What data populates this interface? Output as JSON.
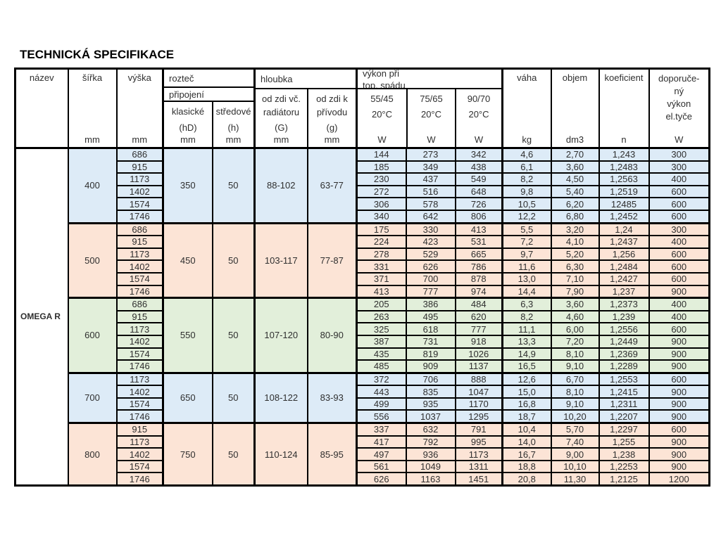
{
  "title": "TECHNICKÁ SPECIFIKACE",
  "product": "OMEGA R",
  "colors": {
    "blue": "#DDEBF7",
    "orange": "#FCE4D6",
    "green": "#E2EFDA",
    "border": "#000000"
  },
  "header": {
    "nazev": "název",
    "sirka": "šířka",
    "vyska": "výška",
    "roztec": "rozteč",
    "pripojeni": "připojení",
    "klasicke_l1": "klasické",
    "klasicke_l2": "(hD)",
    "stredove_l1": "středové",
    "stredove_l2": "(h)",
    "hloubka": "hloubka",
    "g_big_l1": "od zdi  vč.",
    "g_big_l2": "radiátoru",
    "g_big_l3": "(G)",
    "g_small_l1": "od zdi  k",
    "g_small_l2": "přívodu",
    "g_small_l3": "(g)",
    "vykon_l1": "výkon při",
    "vykon_l2": "top. spádu",
    "p55": "55/45",
    "p75": "75/65",
    "p90": "90/70",
    "deg": "20°C",
    "vaha": "váha",
    "objem": "objem",
    "koeficient": "koeficient",
    "dop_l1": "doporuče-",
    "dop_l2": "ný",
    "dop_l3": "výkon",
    "dop_l4": "el.tyče",
    "unit_mm": "mm",
    "unit_w": "W",
    "unit_kg": "kg",
    "unit_dm3": "dm3",
    "unit_n": "n"
  },
  "groups": [
    {
      "sirka": "400",
      "color": "blue",
      "klasicke": "350",
      "stredove": "50",
      "hloubka_G": "88-102",
      "hloubka_g": "63-77",
      "rows": [
        [
          "686",
          "144",
          "273",
          "342",
          "4,6",
          "2,70",
          "1,243",
          "300"
        ],
        [
          "915",
          "185",
          "349",
          "438",
          "6,1",
          "3,60",
          "1,2483",
          "300"
        ],
        [
          "1173",
          "230",
          "437",
          "549",
          "8,2",
          "4,50",
          "1,2563",
          "400"
        ],
        [
          "1402",
          "272",
          "516",
          "648",
          "9,8",
          "5,40",
          "1,2519",
          "600"
        ],
        [
          "1574",
          "306",
          "578",
          "726",
          "10,5",
          "6,20",
          "12485",
          "600"
        ],
        [
          "1746",
          "340",
          "642",
          "806",
          "12,2",
          "6,80",
          "1,2452",
          "600"
        ]
      ]
    },
    {
      "sirka": "500",
      "color": "orange",
      "klasicke": "450",
      "stredove": "50",
      "hloubka_G": "103-117",
      "hloubka_g": "77-87",
      "rows": [
        [
          "686",
          "175",
          "330",
          "413",
          "5,5",
          "3,20",
          "1,24",
          "300"
        ],
        [
          "915",
          "224",
          "423",
          "531",
          "7,2",
          "4,10",
          "1,2437",
          "400"
        ],
        [
          "1173",
          "278",
          "529",
          "665",
          "9,7",
          "5,20",
          "1,256",
          "600"
        ],
        [
          "1402",
          "331",
          "626",
          "786",
          "11,6",
          "6,30",
          "1,2484",
          "600"
        ],
        [
          "1574",
          "371",
          "700",
          "878",
          "13,0",
          "7,10",
          "1,2427",
          "600"
        ],
        [
          "1746",
          "413",
          "777",
          "974",
          "14,4",
          "7,90",
          "1,237",
          "900"
        ]
      ]
    },
    {
      "sirka": "600",
      "color": "green",
      "klasicke": "550",
      "stredove": "50",
      "hloubka_G": "107-120",
      "hloubka_g": "80-90",
      "rows": [
        [
          "686",
          "205",
          "386",
          "484",
          "6,3",
          "3,60",
          "1,2373",
          "400"
        ],
        [
          "915",
          "263",
          "495",
          "620",
          "8,2",
          "4,60",
          "1,239",
          "400"
        ],
        [
          "1173",
          "325",
          "618",
          "777",
          "11,1",
          "6,00",
          "1,2556",
          "600"
        ],
        [
          "1402",
          "387",
          "731",
          "918",
          "13,3",
          "7,20",
          "1,2449",
          "900"
        ],
        [
          "1574",
          "435",
          "819",
          "1026",
          "14,9",
          "8,10",
          "1,2369",
          "900"
        ],
        [
          "1746",
          "485",
          "909",
          "1137",
          "16,5",
          "9,10",
          "1,2289",
          "900"
        ]
      ]
    },
    {
      "sirka": "700",
      "color": "blue",
      "klasicke": "650",
      "stredove": "50",
      "hloubka_G": "108-122",
      "hloubka_g": "83-93",
      "rows": [
        [
          "1173",
          "372",
          "706",
          "888",
          "12,6",
          "6,70",
          "1,2553",
          "600"
        ],
        [
          "1402",
          "443",
          "835",
          "1047",
          "15,0",
          "8,10",
          "1,2415",
          "900"
        ],
        [
          "1574",
          "499",
          "935",
          "1170",
          "16,8",
          "9,10",
          "1,2311",
          "900"
        ],
        [
          "1746",
          "556",
          "1037",
          "1295",
          "18,7",
          "10,20",
          "1,2207",
          "900"
        ]
      ]
    },
    {
      "sirka": "800",
      "color": "orange",
      "klasicke": "750",
      "stredove": "50",
      "hloubka_G": "110-124",
      "hloubka_g": "85-95",
      "rows": [
        [
          "915",
          "337",
          "632",
          "791",
          "10,4",
          "5,70",
          "1,2297",
          "600"
        ],
        [
          "1173",
          "417",
          "792",
          "995",
          "14,0",
          "7,40",
          "1,255",
          "900"
        ],
        [
          "1402",
          "497",
          "936",
          "1173",
          "16,7",
          "9,00",
          "1,238",
          "900"
        ],
        [
          "1574",
          "561",
          "1049",
          "1311",
          "18,8",
          "10,10",
          "1,2253",
          "900"
        ],
        [
          "1746",
          "626",
          "1163",
          "1451",
          "20,8",
          "11,30",
          "1,2125",
          "1200"
        ]
      ]
    }
  ]
}
